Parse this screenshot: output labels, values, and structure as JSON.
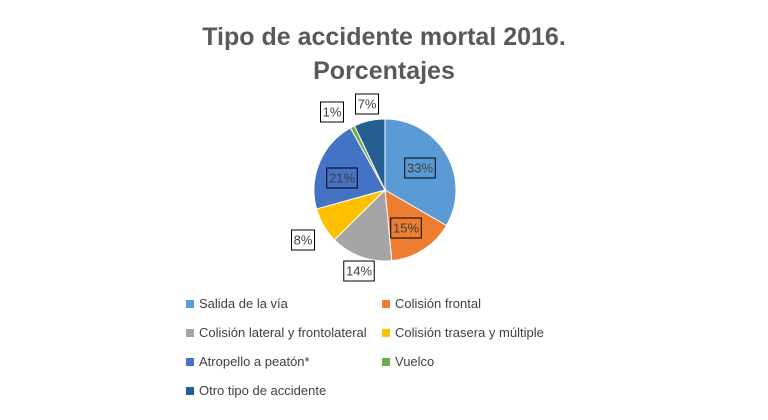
{
  "chart_data": {
    "type": "pie",
    "title_line1": "Tipo de accidente mortal 2016.",
    "title_line2": "Porcentajes",
    "series": [
      {
        "name": "Salida de la vía",
        "value": 33,
        "label": "33%",
        "color": "#5B9BD5"
      },
      {
        "name": "Colisión frontal",
        "value": 15,
        "label": "15%",
        "color": "#ED7D31"
      },
      {
        "name": "Colisión lateral y frontolateral",
        "value": 14,
        "label": "14%",
        "color": "#A5A5A5"
      },
      {
        "name": "Colisión trasera y múltiple",
        "value": 8,
        "label": "8%",
        "color": "#FFC000"
      },
      {
        "name": "Atropello a peatón*",
        "value": 21,
        "label": "21%",
        "color": "#4472C4"
      },
      {
        "name": "Vuelco",
        "value": 1,
        "label": "1%",
        "color": "#70AD47"
      },
      {
        "name": "Otro tipo de accidente",
        "value": 7,
        "label": "7%",
        "color": "#255E91"
      }
    ],
    "legend_position": "bottom"
  }
}
